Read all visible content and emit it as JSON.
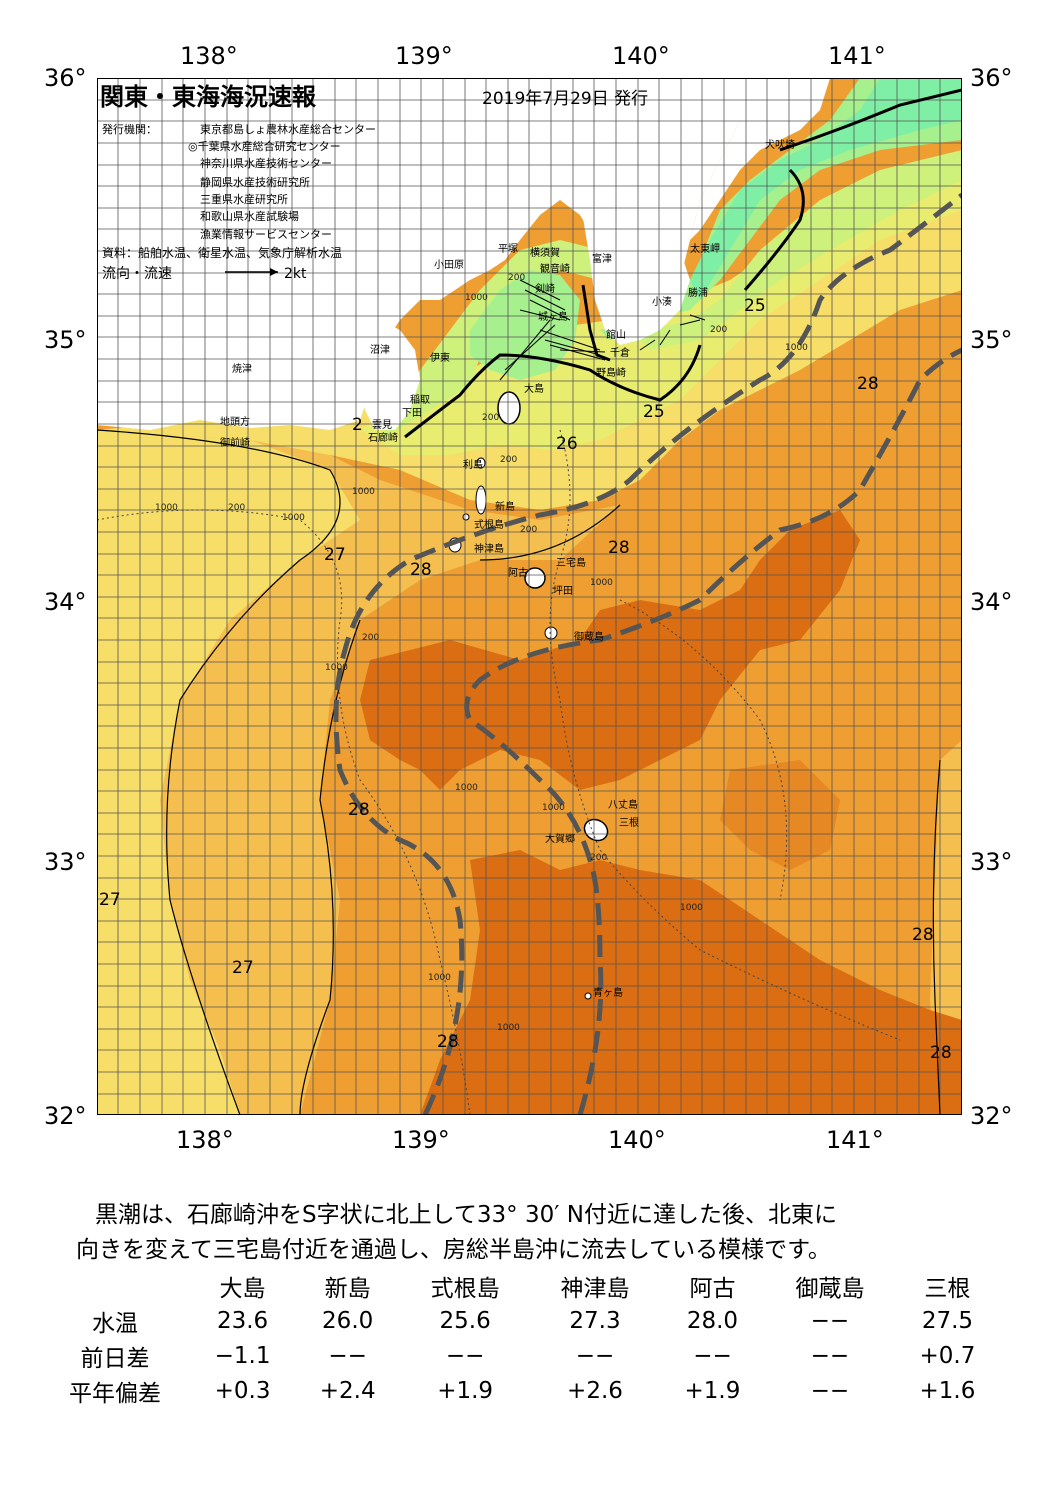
{
  "map": {
    "title": "関東・東海海況速報",
    "issue_date": "2019年7月29日 発行",
    "issuers_label": "発行機関：",
    "issuers": [
      "東京都島しょ農林水産総合センター",
      "◎千葉県水産総合研究センター",
      "神奈川県水産技術センター",
      "静岡県水産技術研究所",
      "三重県水産研究所",
      "和歌山県水産試験場",
      "漁業情報サービスセンター"
    ],
    "source": "資料：船舶水温、衛星水温、気象庁解析水温",
    "current_legend": "流向・流速",
    "current_scale": "2kt",
    "lon_labels": [
      "138°",
      "139°",
      "140°",
      "141°"
    ],
    "lat_labels": [
      "36°",
      "35°",
      "34°",
      "33°",
      "32°"
    ],
    "isotherm_labels": [
      "25",
      "25",
      "26",
      "27",
      "28",
      "28",
      "28",
      "28",
      "27",
      "27",
      "28",
      "28",
      "28",
      "2"
    ],
    "place_names": {
      "inubosaki": "犬吠埼",
      "taitomisaki": "太東岬",
      "katsuura": "勝浦",
      "kominato": "小湊",
      "tateyama": "館山",
      "chikura": "千倉",
      "nojimazaki": "野島崎",
      "futtsu": "富津",
      "yokosuka": "横須賀",
      "kannonzaki": "観音崎",
      "hiratsuka": "平塚",
      "odawara": "小田原",
      "jogashima": "城ヶ島",
      "kenzaki": "剣崎",
      "numazu": "沼津",
      "ito": "伊東",
      "oshima": "大島",
      "inatori": "稲取",
      "shimoda": "下田",
      "kumomi": "雲見",
      "irozaki": "石廊崎",
      "yaizu": "焼津",
      "jitogata": "地頭方",
      "omaezaki": "御前崎",
      "toshima": "利島",
      "niijima": "新島",
      "shikinejima": "式根島",
      "kozushima": "神津島",
      "ako": "阿古",
      "miyakejima": "三宅島",
      "tsubota": "坪田",
      "mikurajima": "御蔵島",
      "hachijojima": "八丈島",
      "mitsune": "三根",
      "okago": "大賀郷",
      "aogashima": "青ヶ島"
    },
    "depth_labels": [
      "200",
      "1000"
    ],
    "colors": {
      "very_cold": "#7fefa5",
      "cold": "#a6f08e",
      "light_green": "#cdf17a",
      "yellow_green": "#e8ec6f",
      "yellow": "#f6de68",
      "light_orange": "#f5bf50",
      "orange": "#ef9f32",
      "dark_orange": "#e68823",
      "deep_orange": "#db6e12",
      "land": "#ffffff",
      "kuroshio_axis": "#555555"
    }
  },
  "summary": {
    "line1": "黒潮は、石廊崎沖をS字状に北上して33° 30′ N付近に達した後、北東に",
    "line2": "向きを変えて三宅島付近を通過し、房総半島沖に流去している模様です。"
  },
  "table": {
    "columns": [
      "大島",
      "新島",
      "式根島",
      "神津島",
      "阿古",
      "御蔵島",
      "三根"
    ],
    "rows": [
      {
        "label": "水温",
        "values": [
          "23.6",
          "26.0",
          "25.6",
          "27.3",
          "28.0",
          "−−",
          "27.5"
        ]
      },
      {
        "label": "前日差",
        "values": [
          "−1.1",
          "−−",
          "−−",
          "−−",
          "−−",
          "−−",
          "+0.7"
        ]
      },
      {
        "label": "平年偏差",
        "values": [
          "+0.3",
          "+2.4",
          "+1.9",
          "+2.6",
          "+1.9",
          "−−",
          "+1.6"
        ]
      }
    ]
  }
}
